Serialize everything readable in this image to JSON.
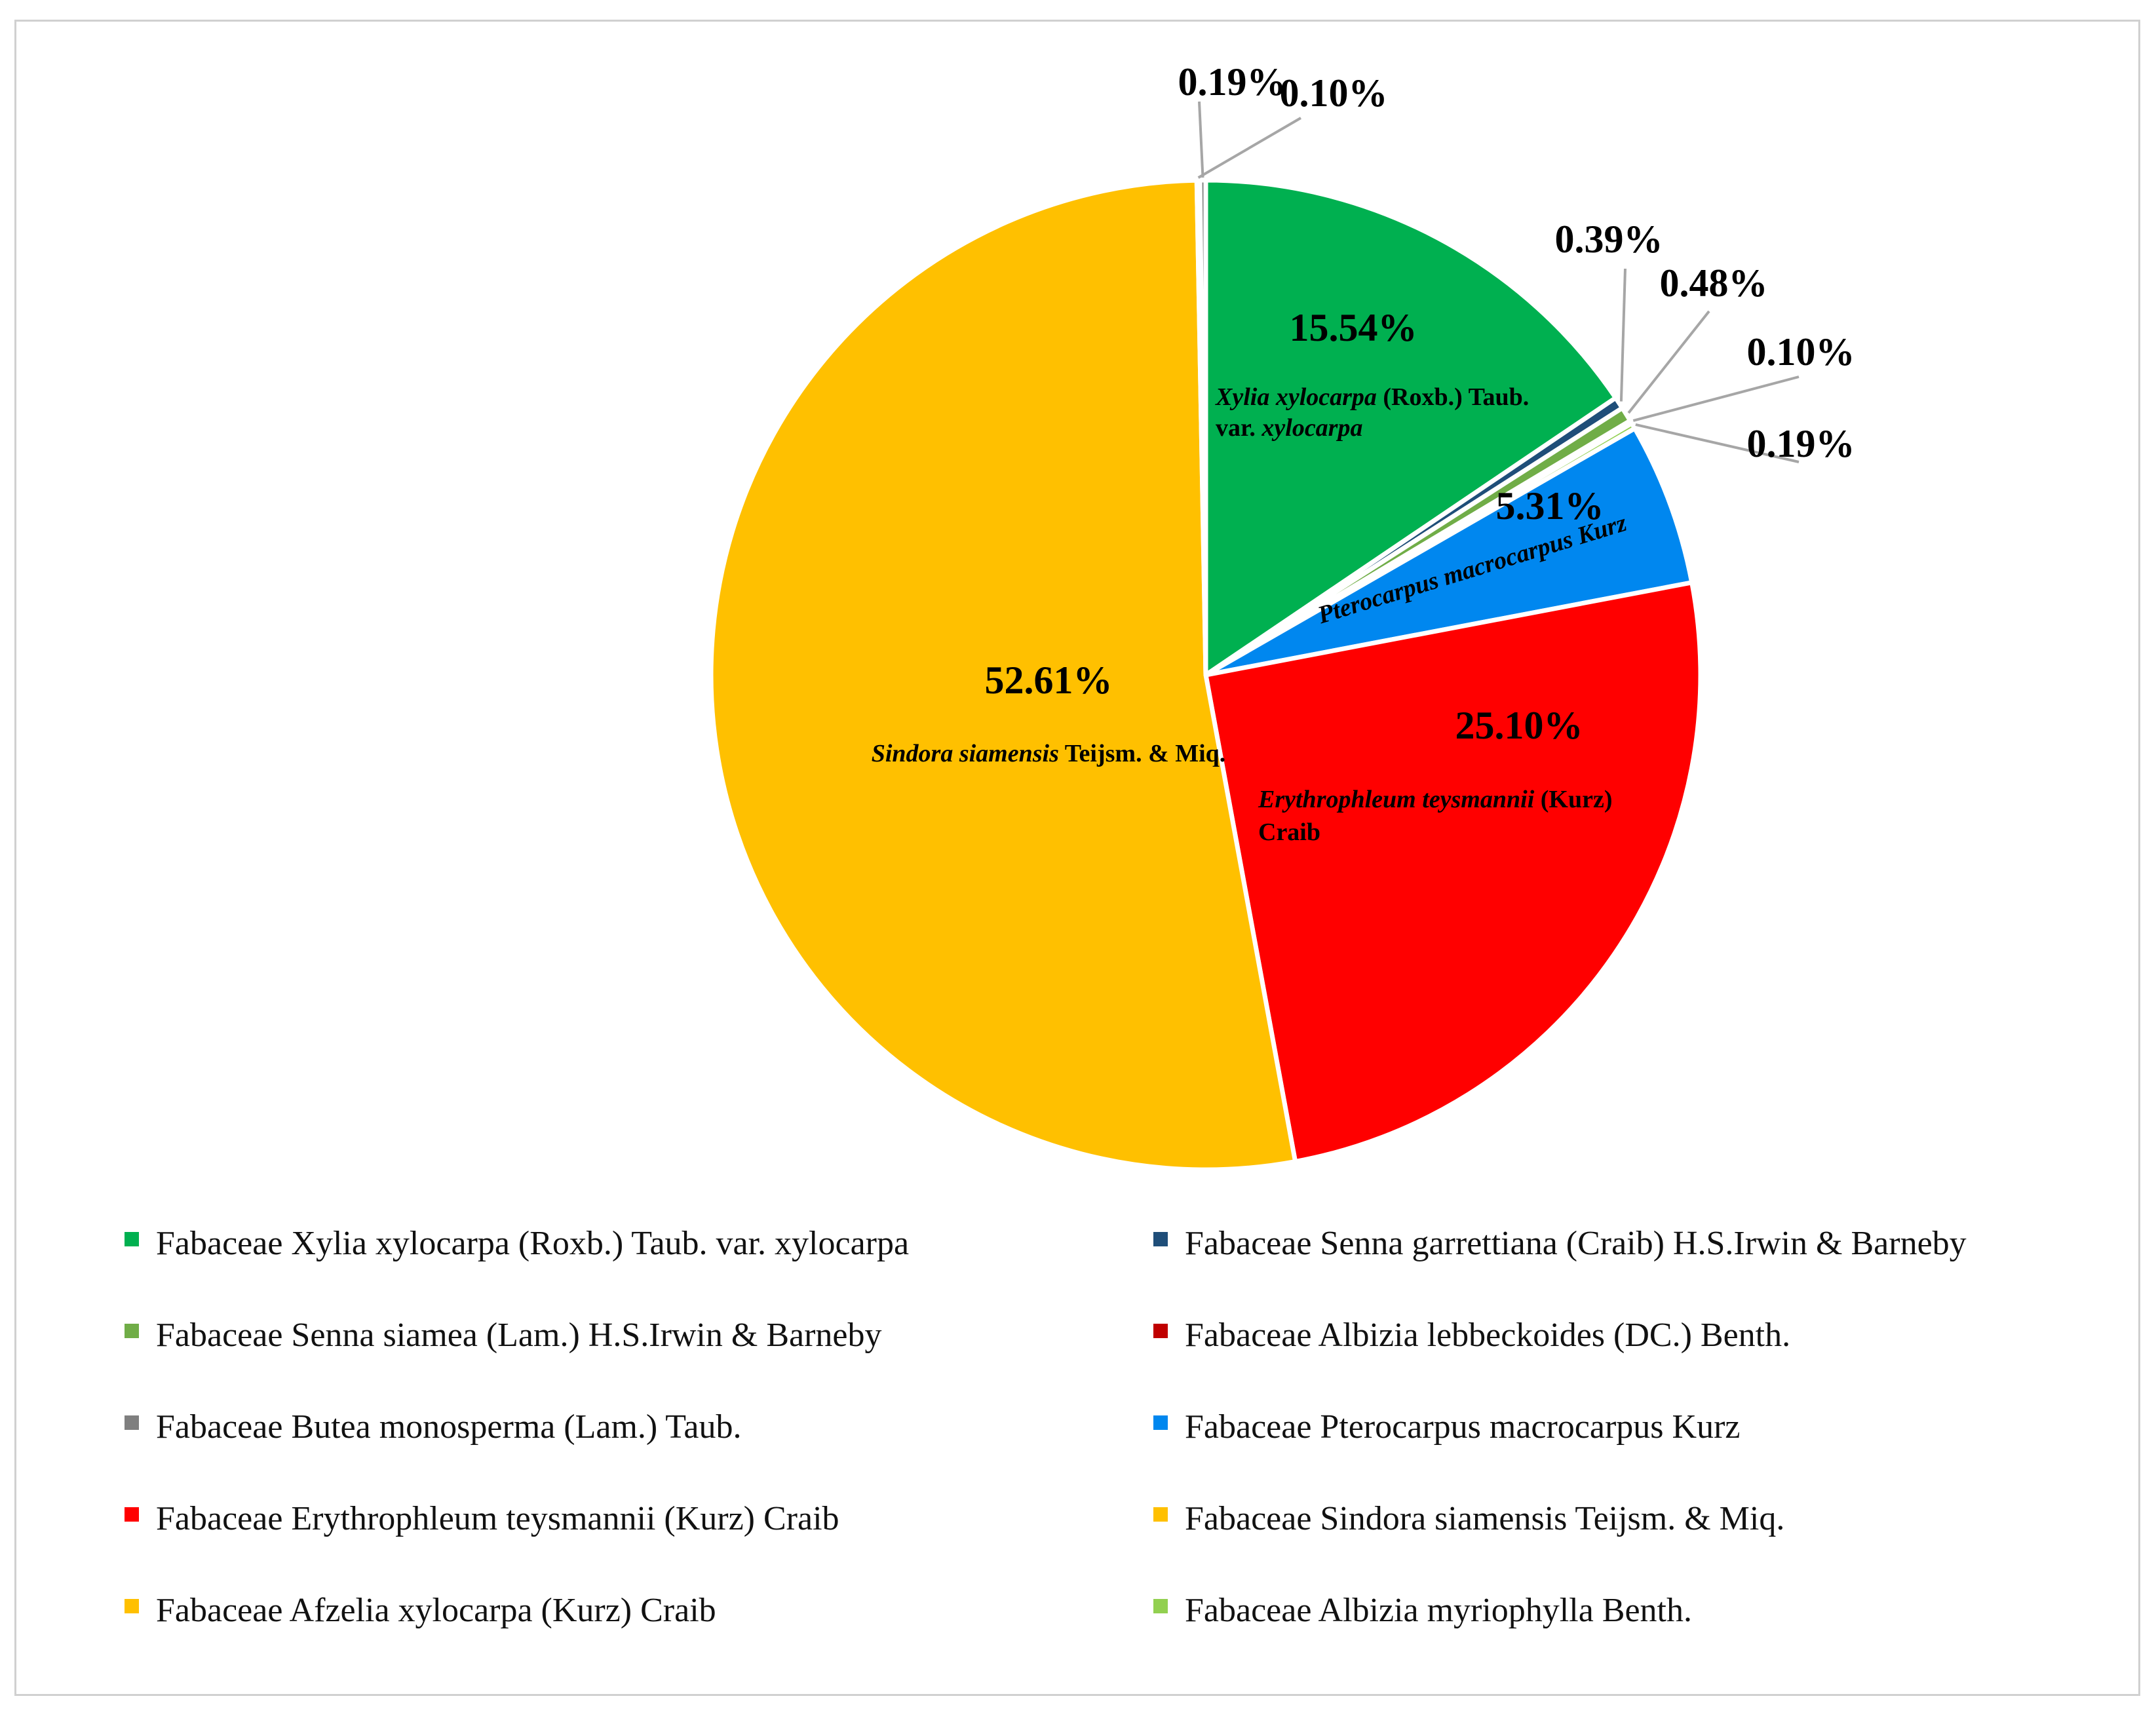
{
  "chart_data": {
    "type": "pie",
    "colors": {
      "slice_border": "#ffffff",
      "leader_line": "#a6a6a6"
    },
    "slices": [
      {
        "pct": 15.54,
        "label": "15.54%",
        "color": "#00b050",
        "name_parts": [
          {
            "t": "Xylia xylocarpa",
            "i": true
          },
          {
            "t": " (Roxb.) Taub.",
            "i": false
          }
        ],
        "name_parts2": [
          {
            "t": "var. ",
            "i": false
          },
          {
            "t": "xylocarpa",
            "i": true
          }
        ]
      },
      {
        "pct": 0.39,
        "label": "0.39%",
        "color": "#1f4e79"
      },
      {
        "pct": 0.48,
        "label": "0.48%",
        "color": "#70ad47"
      },
      {
        "pct": 0.1,
        "label": "0.10%",
        "color": "#c00000"
      },
      {
        "pct": 0.19,
        "label": "0.19%",
        "color": "#92d050"
      },
      {
        "pct": 5.31,
        "label": "5.31%",
        "color": "#0087ef",
        "name_parts": [
          {
            "t": "Pterocarpus  macrocarpus Kurz",
            "i": true
          }
        ]
      },
      {
        "pct": 25.1,
        "label": "25.10%",
        "color": "#ff0000",
        "name_parts": [
          {
            "t": "Erythrophleum teysmannii",
            "i": true
          },
          {
            "t": " (Kurz)",
            "i": false
          }
        ],
        "name_parts2": [
          {
            "t": "Craib",
            "i": false
          }
        ]
      },
      {
        "pct": 52.61,
        "label": "52.61%",
        "color": "#ffc000",
        "name_parts": [
          {
            "t": "Sindora siamensis",
            "i": true
          },
          {
            "t": " Teijsm. & Miq.",
            "i": false
          }
        ]
      },
      {
        "pct": 0.1,
        "label": "0.10%",
        "color": "#ffc000"
      },
      {
        "pct": 0.19,
        "label": "0.19%",
        "color": "#7f7f7f"
      }
    ],
    "legend_placement": "bottom",
    "legend": [
      {
        "label": "Fabaceae Xylia xylocarpa (Roxb.) Taub. var. xylocarpa",
        "color": "#00b050"
      },
      {
        "label": "Fabaceae Senna garrettiana (Craib) H.S.Irwin & Barneby",
        "color": "#1f4e79"
      },
      {
        "label": "Fabaceae Senna siamea (Lam.) H.S.Irwin & Barneby",
        "color": "#70ad47"
      },
      {
        "label": "Fabaceae Albizia lebbeckoides (DC.) Benth.",
        "color": "#c00000"
      },
      {
        "label": "Fabaceae Butea monosperma (Lam.) Taub.",
        "color": "#7f7f7f"
      },
      {
        "label": "Fabaceae Pterocarpus  macrocarpus Kurz",
        "color": "#0087ef"
      },
      {
        "label": "Fabaceae Erythrophleum teysmannii (Kurz) Craib",
        "color": "#ff0000"
      },
      {
        "label": "Fabaceae Sindora siamensis Teijsm. & Miq.",
        "color": "#ffc000"
      },
      {
        "label": "Fabaceae Afzelia xylocarpa (Kurz) Craib",
        "color": "#ffc000"
      },
      {
        "label": "Fabaceae Albizia myriophylla Benth.",
        "color": "#92d050"
      }
    ]
  }
}
